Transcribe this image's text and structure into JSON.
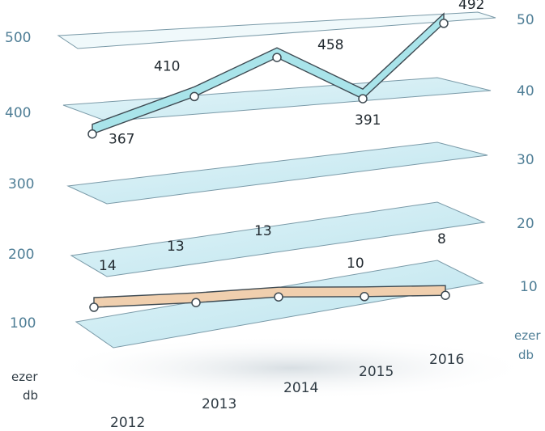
{
  "chart_data": {
    "type": "line",
    "categories": [
      "2012",
      "2013",
      "2014",
      "2015",
      "2016"
    ],
    "series": [
      {
        "values": [
          367,
          410,
          458,
          391,
          492
        ],
        "axis": "left",
        "color": "#a9e4ea"
      },
      {
        "values": [
          14,
          13,
          13,
          10,
          8
        ],
        "axis": "right",
        "color": "#f0cfae"
      }
    ],
    "y_left": {
      "ticks": [
        "500",
        "400",
        "300",
        "200",
        "100"
      ],
      "unit": [
        "ezer",
        "db"
      ]
    },
    "y_right": {
      "ticks": [
        "50",
        "40",
        "30",
        "20",
        "10"
      ],
      "unit": [
        "ezer",
        "db"
      ]
    },
    "colors": {
      "plane": "#bfe7f0",
      "axis_text": "#4f7e96"
    }
  }
}
